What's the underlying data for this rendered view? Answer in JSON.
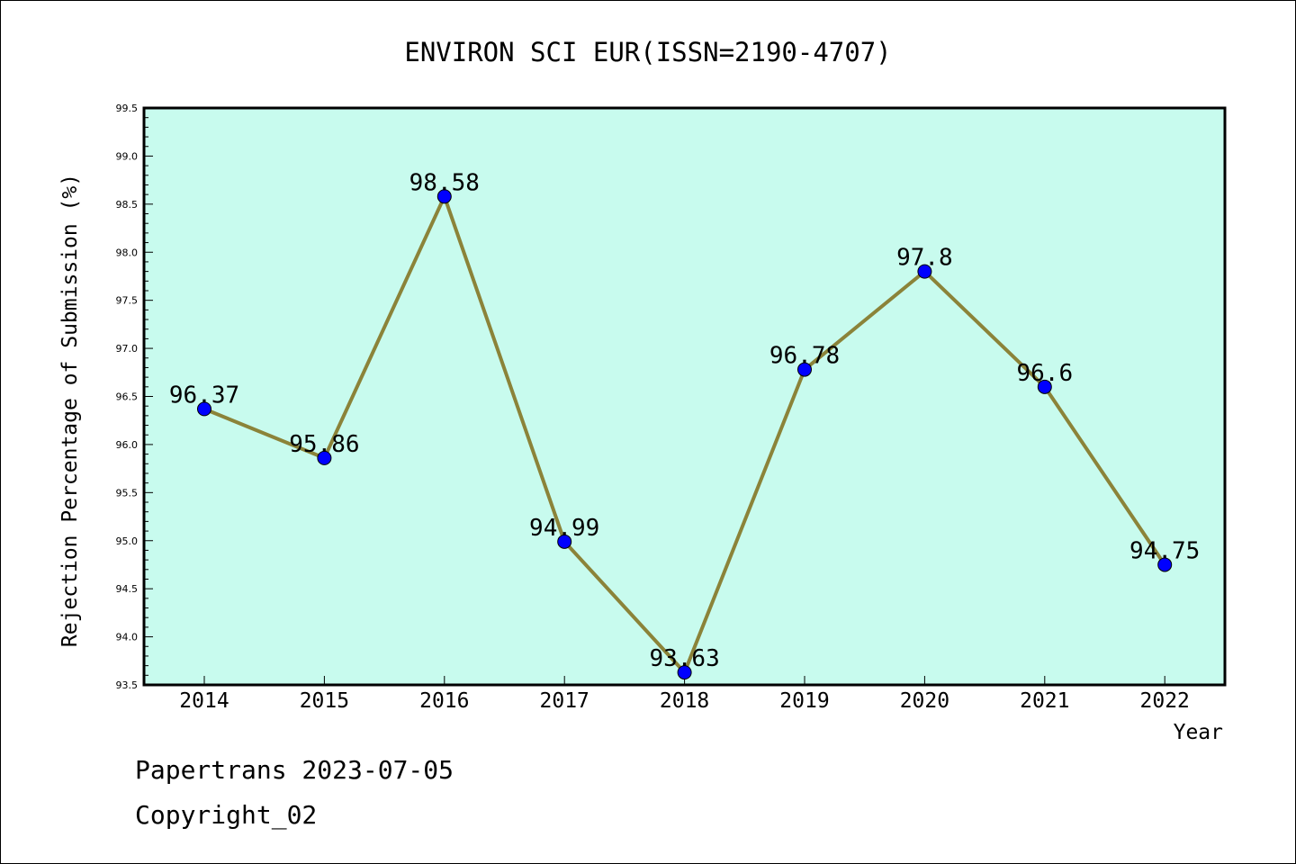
{
  "chart_data": {
    "type": "line",
    "title": "ENVIRON SCI EUR(ISSN=2190-4707)",
    "xlabel": "Year",
    "ylabel": "Rejection Percentage of Submission (%)",
    "categories": [
      "2014",
      "2015",
      "2016",
      "2017",
      "2018",
      "2019",
      "2020",
      "2021",
      "2022"
    ],
    "series": [
      {
        "values": [
          96.37,
          95.86,
          98.58,
          94.99,
          93.63,
          96.78,
          97.8,
          96.6,
          94.75
        ],
        "labels": [
          "96.37",
          "95.86",
          "98.58",
          "94.99",
          "93.63",
          "96.78",
          "97.8",
          "96.6",
          "94.75"
        ]
      }
    ],
    "ylim": [
      93.5,
      99.5
    ],
    "yticks": [
      "93.5",
      "94.0",
      "94.5",
      "95.0",
      "95.5",
      "96.0",
      "96.5",
      "97.0",
      "97.5",
      "98.0",
      "98.5",
      "99.0",
      "99.5"
    ],
    "grid": false,
    "colors": {
      "plot_bg": "#c8fbee",
      "line": "#8b8339",
      "marker": "#0000ff"
    }
  },
  "footer": {
    "line1": "Papertrans 2023-07-05",
    "line2": "Copyright_02"
  }
}
